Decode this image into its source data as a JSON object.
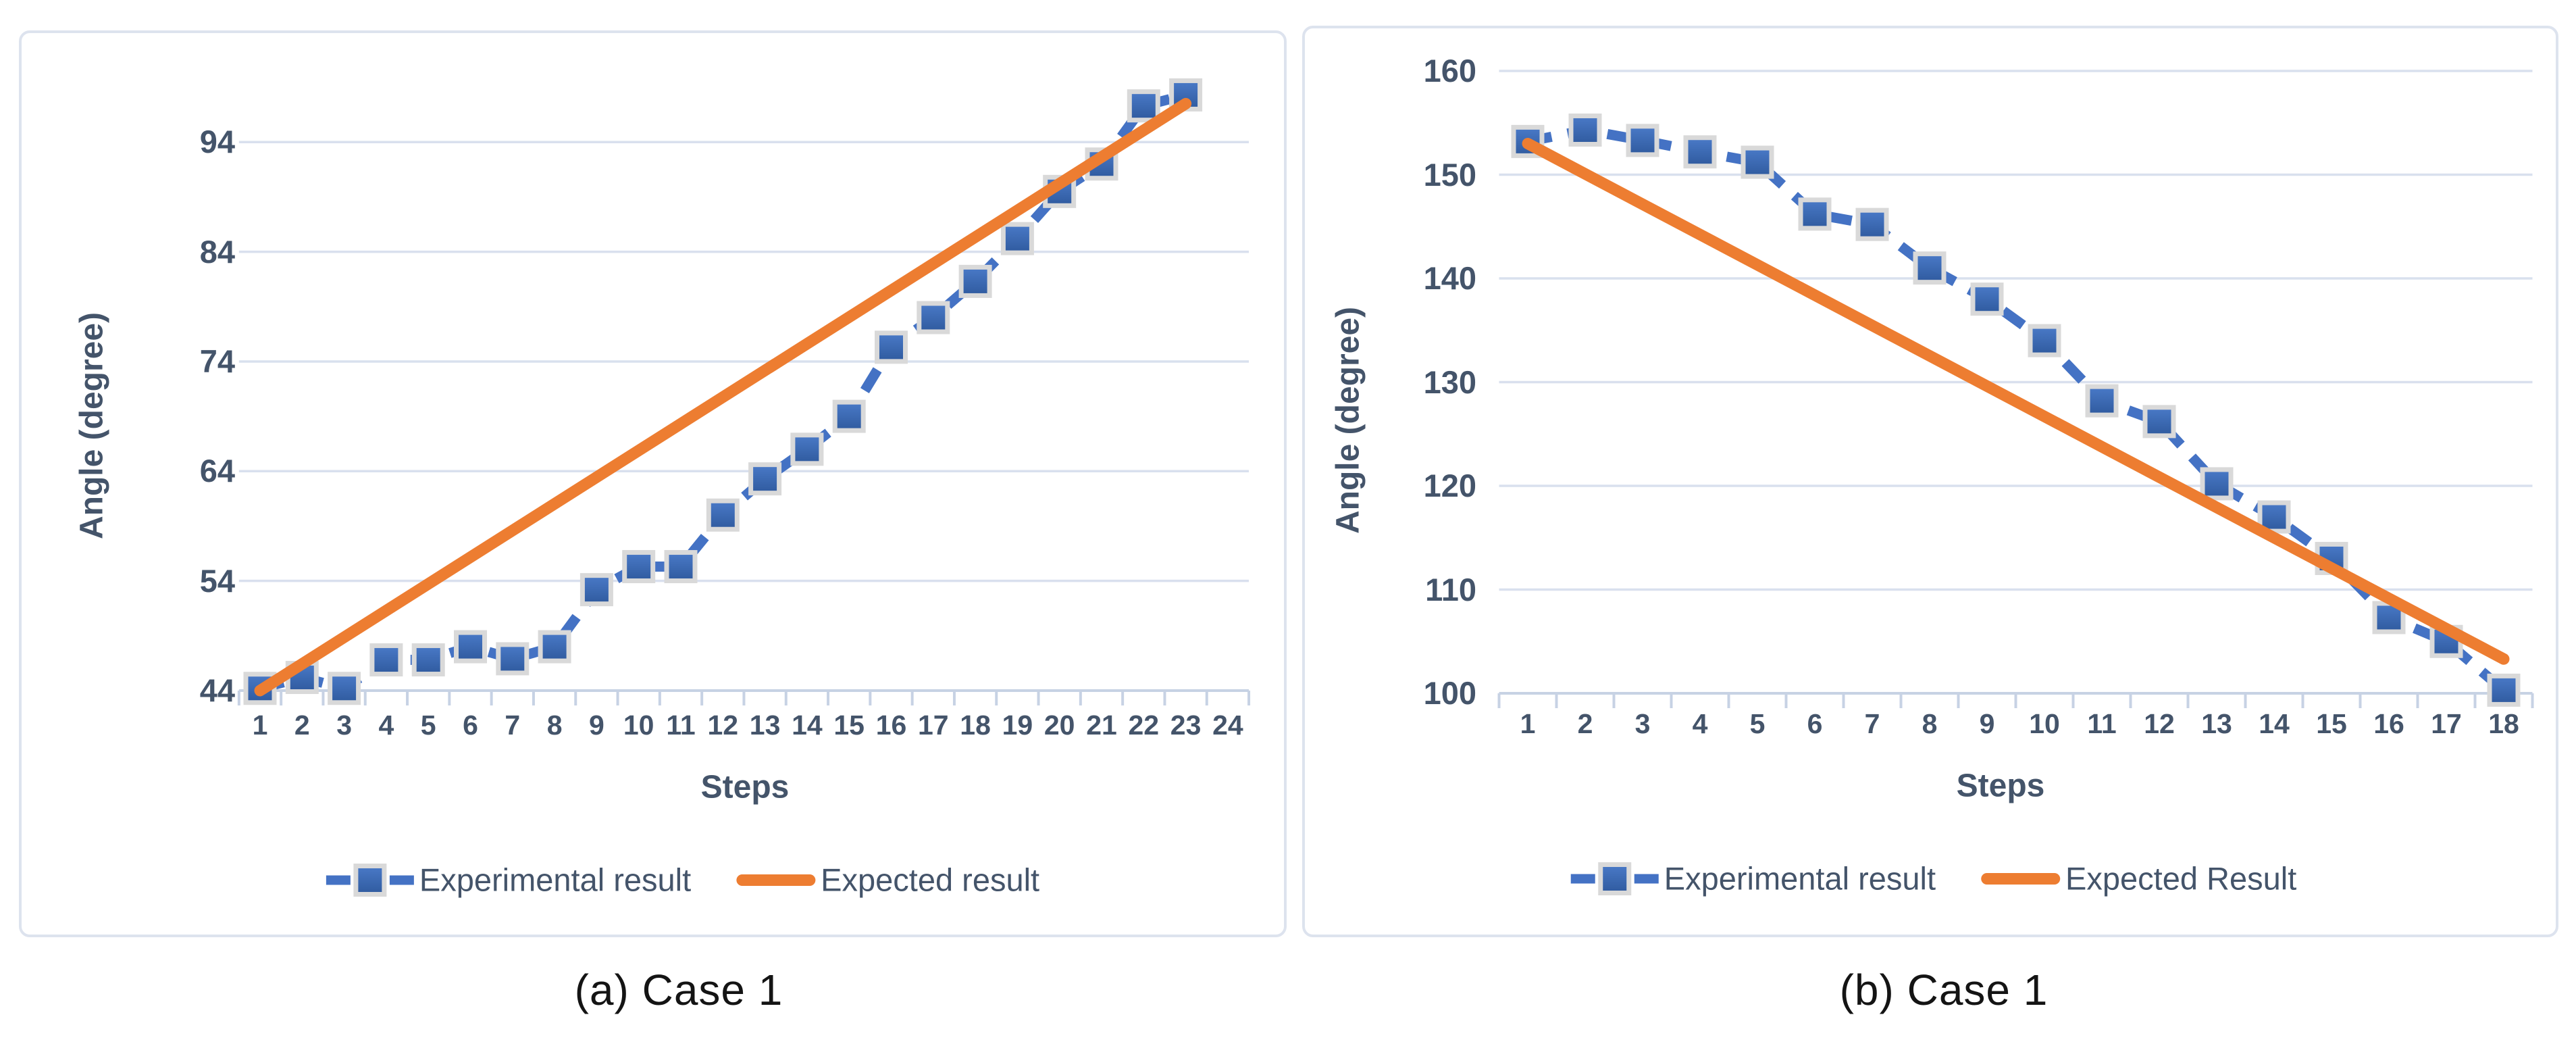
{
  "colors": {
    "experimental_line": "#4472C4",
    "expected_line": "#ED7D31",
    "marker_fill_top": "#4A7AC8",
    "marker_fill_bottom": "#2F5A9E",
    "marker_border": "#D9D9D9",
    "gridline": "#D9E0EE",
    "axis_line": "#C7D2E4",
    "tick_text": "#44546A",
    "caption_text": "#141414",
    "panel_border": "#DDE3EE",
    "background": "#FFFFFF"
  },
  "chart_data": [
    {
      "type": "line",
      "title": "",
      "caption": "(a) Case 1",
      "xlabel": "Steps",
      "ylabel": "Angle (degree)",
      "x_ticks": [
        1,
        2,
        3,
        4,
        5,
        6,
        7,
        8,
        9,
        10,
        11,
        12,
        13,
        14,
        15,
        16,
        17,
        18,
        19,
        20,
        21,
        22,
        23,
        24
      ],
      "y_ticks": [
        44,
        54,
        64,
        74,
        84,
        94
      ],
      "xlim": [
        1,
        24
      ],
      "ylim": [
        44,
        104
      ],
      "grid": true,
      "legend_position": "bottom",
      "series": [
        {
          "name": "Experimental result",
          "style": "dashed-marker",
          "x": [
            1,
            2,
            3,
            4,
            5,
            6,
            7,
            8,
            9,
            10,
            11,
            12,
            13,
            14,
            15,
            16,
            17,
            18,
            19,
            20,
            21,
            22,
            23
          ],
          "values": [
            44.2,
            45.2,
            44.2,
            46.8,
            46.8,
            48.0,
            46.9,
            48.0,
            53.2,
            55.3,
            55.3,
            60.0,
            63.3,
            66.0,
            69.0,
            75.3,
            78.0,
            81.3,
            85.2,
            89.5,
            92.0,
            97.3,
            98.3
          ]
        },
        {
          "name": "Expected result",
          "style": "solid",
          "x": [
            1,
            23
          ],
          "values": [
            44,
            97.5
          ]
        }
      ]
    },
    {
      "type": "line",
      "title": "",
      "caption": "(b) Case 1",
      "xlabel": "Steps",
      "ylabel": "Angle (degree)",
      "x_ticks": [
        1,
        2,
        3,
        4,
        5,
        6,
        7,
        8,
        9,
        10,
        11,
        12,
        13,
        14,
        15,
        16,
        17,
        18
      ],
      "y_ticks": [
        100,
        110,
        120,
        130,
        140,
        150,
        160
      ],
      "xlim": [
        1,
        18
      ],
      "ylim": [
        100,
        160
      ],
      "grid": true,
      "legend_position": "bottom",
      "series": [
        {
          "name": "Experimental result",
          "style": "dashed-marker",
          "x": [
            1,
            2,
            3,
            4,
            5,
            6,
            7,
            8,
            9,
            10,
            11,
            12,
            13,
            14,
            15,
            16,
            17,
            18
          ],
          "values": [
            153.2,
            154.3,
            153.3,
            152.2,
            151.2,
            146.2,
            145.2,
            141.0,
            138.0,
            134.0,
            128.2,
            126.2,
            120.2,
            117.0,
            113.0,
            107.3,
            105.0,
            100.3
          ]
        },
        {
          "name": "Expected Result",
          "style": "solid",
          "x": [
            1,
            18
          ],
          "values": [
            153,
            103.3
          ]
        }
      ]
    }
  ]
}
